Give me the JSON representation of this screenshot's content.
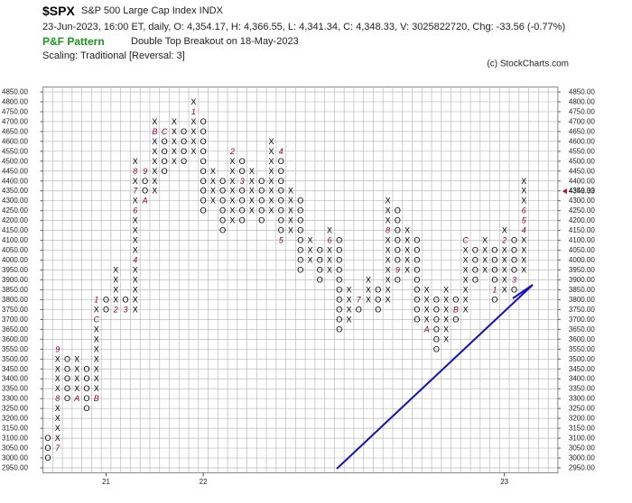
{
  "header": {
    "symbol": "$SPX",
    "name": "S&P 500 Large Cap Index  INDX",
    "details": "23-Jun-2023, 16:00 ET, daily, O: 4,354.17, H: 4,366.55, L: 4,341.34, C: 4,348.33, V: 3025822720, Chg: -33.56 (-0.77%)",
    "pattern_label": "P&F Pattern",
    "pattern": "Double Top Breakout on 18-May-2023",
    "scaling": "Scaling: Traditional [Reversal: 3]",
    "copyright": "(c) StockCharts.com"
  },
  "chart_data": {
    "type": "point-and-figure",
    "ylim": [
      2925,
      4875
    ],
    "yticks": [
      {
        "value": 2950,
        "label": "2950.00"
      },
      {
        "value": 3000,
        "label": "3000.00"
      },
      {
        "value": 3050,
        "label": "3050.00"
      },
      {
        "value": 3100,
        "label": "3100.00"
      },
      {
        "value": 3150,
        "label": "3150.00"
      },
      {
        "value": 3200,
        "label": "3200.00"
      },
      {
        "value": 3250,
        "label": "3250.00"
      },
      {
        "value": 3300,
        "label": "3300.00"
      },
      {
        "value": 3350,
        "label": "3350.00"
      },
      {
        "value": 3400,
        "label": "3400.00"
      },
      {
        "value": 3450,
        "label": "3450.00"
      },
      {
        "value": 3500,
        "label": "3500.00"
      },
      {
        "value": 3550,
        "label": "3550.00"
      },
      {
        "value": 3600,
        "label": "3600.00"
      },
      {
        "value": 3650,
        "label": "3650.00"
      },
      {
        "value": 3700,
        "label": "3700.00"
      },
      {
        "value": 3750,
        "label": "3750.00"
      },
      {
        "value": 3800,
        "label": "3800.00"
      },
      {
        "value": 3850,
        "label": "3850.00"
      },
      {
        "value": 3900,
        "label": "3900.00"
      },
      {
        "value": 3950,
        "label": "3950.00"
      },
      {
        "value": 4000,
        "label": "4000.00"
      },
      {
        "value": 4050,
        "label": "4050.00"
      },
      {
        "value": 4100,
        "label": "4100.00"
      },
      {
        "value": 4150,
        "label": "4150.00"
      },
      {
        "value": 4200,
        "label": "4200.00"
      },
      {
        "value": 4250,
        "label": "4250.00"
      },
      {
        "value": 4300,
        "label": "4300.00"
      },
      {
        "value": 4350,
        "label": "4350.00"
      },
      {
        "value": 4400,
        "label": "4400.00"
      },
      {
        "value": 4450,
        "label": "4450.00"
      },
      {
        "value": 4500,
        "label": "4500.00"
      },
      {
        "value": 4550,
        "label": "4550.00"
      },
      {
        "value": 4600,
        "label": "4600.00"
      },
      {
        "value": 4650,
        "label": "4650.00"
      },
      {
        "value": 4700,
        "label": "4700.00"
      },
      {
        "value": 4750,
        "label": "4750.00"
      },
      {
        "value": 4800,
        "label": "4800.00"
      },
      {
        "value": 4850,
        "label": "4850.00"
      }
    ],
    "grid": true,
    "x_color": "#000000",
    "o_color": "#000000",
    "month_color": "#a0002a",
    "trend_color": "#1010cc",
    "last_price": {
      "value": 4348.33,
      "label": "4348.33",
      "color": "#c00030"
    },
    "xlabels": [
      {
        "column": 6,
        "label": "21"
      },
      {
        "column": 16,
        "label": "22"
      },
      {
        "column": 47,
        "label": "23"
      }
    ],
    "columns": [
      {
        "type": "O",
        "low": 3000,
        "high": 3100,
        "marks": []
      },
      {
        "type": "X",
        "low": 3050,
        "high": 3550,
        "marks": [
          {
            "value": 3050,
            "label": "7"
          },
          {
            "value": 3300,
            "label": "8"
          },
          {
            "value": 3550,
            "label": "9"
          }
        ]
      },
      {
        "type": "O",
        "low": 3300,
        "high": 3500,
        "marks": []
      },
      {
        "type": "X",
        "low": 3300,
        "high": 3500,
        "marks": [
          {
            "value": 3300,
            "label": "A"
          }
        ]
      },
      {
        "type": "O",
        "low": 3250,
        "high": 3450,
        "marks": []
      },
      {
        "type": "X",
        "low": 3300,
        "high": 3800,
        "marks": [
          {
            "value": 3300,
            "label": "B"
          },
          {
            "value": 3700,
            "label": "C"
          },
          {
            "value": 3800,
            "label": "1"
          }
        ]
      },
      {
        "type": "O",
        "low": 3750,
        "high": 3800,
        "marks": []
      },
      {
        "type": "X",
        "low": 3750,
        "high": 3950,
        "marks": [
          {
            "value": 3750,
            "label": "2"
          }
        ]
      },
      {
        "type": "O",
        "low": 3750,
        "high": 3800,
        "marks": [
          {
            "value": 3750,
            "label": "3"
          }
        ]
      },
      {
        "type": "X",
        "low": 3750,
        "high": 4500,
        "marks": [
          {
            "value": 4000,
            "label": "4"
          },
          {
            "value": 4250,
            "label": "6"
          },
          {
            "value": 4350,
            "label": "7"
          },
          {
            "value": 4450,
            "label": "8"
          }
        ]
      },
      {
        "type": "O",
        "low": 4300,
        "high": 4450,
        "marks": [
          {
            "value": 4450,
            "label": "9"
          },
          {
            "value": 4300,
            "label": "A"
          }
        ]
      },
      {
        "type": "X",
        "low": 4350,
        "high": 4700,
        "marks": [
          {
            "value": 4650,
            "label": "B"
          }
        ]
      },
      {
        "type": "O",
        "low": 4450,
        "high": 4650,
        "marks": [
          {
            "value": 4650,
            "label": "C"
          }
        ]
      },
      {
        "type": "X",
        "low": 4500,
        "high": 4700,
        "marks": []
      },
      {
        "type": "O",
        "low": 4500,
        "high": 4650,
        "marks": []
      },
      {
        "type": "X",
        "low": 4550,
        "high": 4800,
        "marks": [
          {
            "value": 4750,
            "label": "1"
          }
        ]
      },
      {
        "type": "O",
        "low": 4250,
        "high": 4700,
        "marks": []
      },
      {
        "type": "X",
        "low": 4300,
        "high": 4450,
        "marks": []
      },
      {
        "type": "O",
        "low": 4150,
        "high": 4400,
        "marks": []
      },
      {
        "type": "X",
        "low": 4200,
        "high": 4550,
        "marks": [
          {
            "value": 4550,
            "label": "2"
          }
        ]
      },
      {
        "type": "O",
        "low": 4200,
        "high": 4500,
        "marks": [
          {
            "value": 4400,
            "label": "3"
          }
        ]
      },
      {
        "type": "X",
        "low": 4250,
        "high": 4450,
        "marks": []
      },
      {
        "type": "O",
        "low": 4200,
        "high": 4400,
        "marks": []
      },
      {
        "type": "X",
        "low": 4250,
        "high": 4600,
        "marks": []
      },
      {
        "type": "O",
        "low": 4100,
        "high": 4550,
        "marks": [
          {
            "value": 4550,
            "label": "4"
          },
          {
            "value": 4100,
            "label": "5"
          }
        ]
      },
      {
        "type": "X",
        "low": 4150,
        "high": 4350,
        "marks": []
      },
      {
        "type": "O",
        "low": 3950,
        "high": 4300,
        "marks": []
      },
      {
        "type": "X",
        "low": 4000,
        "high": 4100,
        "marks": []
      },
      {
        "type": "O",
        "low": 3900,
        "high": 4050,
        "marks": []
      },
      {
        "type": "X",
        "low": 3950,
        "high": 4150,
        "marks": [
          {
            "value": 4100,
            "label": "6"
          }
        ]
      },
      {
        "type": "O",
        "low": 3650,
        "high": 4100,
        "marks": []
      },
      {
        "type": "X",
        "low": 3700,
        "high": 3850,
        "marks": []
      },
      {
        "type": "O",
        "low": 3750,
        "high": 3800,
        "marks": [
          {
            "value": 3800,
            "label": "7"
          }
        ]
      },
      {
        "type": "X",
        "low": 3800,
        "high": 3900,
        "marks": []
      },
      {
        "type": "O",
        "low": 3750,
        "high": 3850,
        "marks": []
      },
      {
        "type": "X",
        "low": 3800,
        "high": 4300,
        "marks": [
          {
            "value": 4150,
            "label": "8"
          }
        ]
      },
      {
        "type": "O",
        "low": 3900,
        "high": 4250,
        "marks": [
          {
            "value": 3950,
            "label": "9"
          }
        ]
      },
      {
        "type": "X",
        "low": 3950,
        "high": 4150,
        "marks": []
      },
      {
        "type": "O",
        "low": 3700,
        "high": 4100,
        "marks": []
      },
      {
        "type": "X",
        "low": 3650,
        "high": 3850,
        "marks": [
          {
            "value": 3650,
            "label": "A"
          }
        ]
      },
      {
        "type": "O",
        "low": 3550,
        "high": 3800,
        "marks": []
      },
      {
        "type": "X",
        "low": 3600,
        "high": 3850,
        "marks": []
      },
      {
        "type": "O",
        "low": 3700,
        "high": 3800,
        "marks": [
          {
            "value": 3750,
            "label": "B"
          }
        ]
      },
      {
        "type": "X",
        "low": 3750,
        "high": 4100,
        "marks": [
          {
            "value": 4100,
            "label": "C"
          }
        ]
      },
      {
        "type": "O",
        "low": 3900,
        "high": 4050,
        "marks": []
      },
      {
        "type": "X",
        "low": 3950,
        "high": 4100,
        "marks": []
      },
      {
        "type": "O",
        "low": 3800,
        "high": 4050,
        "marks": [
          {
            "value": 3850,
            "label": "1"
          }
        ]
      },
      {
        "type": "X",
        "low": 3850,
        "high": 4150,
        "marks": [
          {
            "value": 4100,
            "label": "2"
          }
        ]
      },
      {
        "type": "O",
        "low": 3850,
        "high": 4100,
        "marks": [
          {
            "value": 3900,
            "label": "3"
          }
        ]
      },
      {
        "type": "X",
        "low": 3950,
        "high": 4400,
        "marks": [
          {
            "value": 4150,
            "label": "4"
          },
          {
            "value": 4200,
            "label": "5"
          },
          {
            "value": 4250,
            "label": "6"
          }
        ]
      }
    ]
  }
}
